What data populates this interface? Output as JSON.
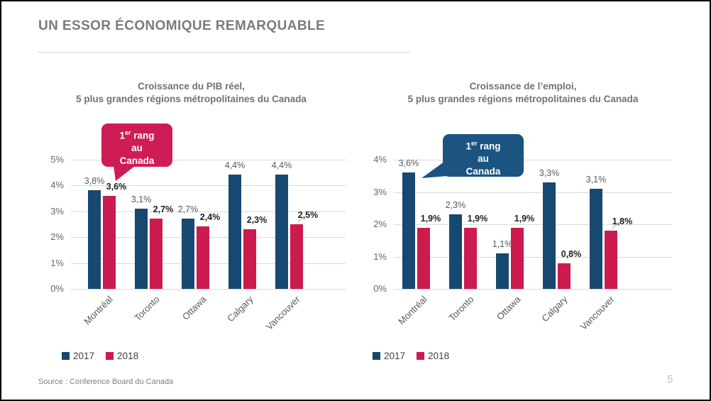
{
  "slide": {
    "title": "UN ESSOR ÉCONOMIQUE REMARQUABLE",
    "source": "Source : Conference Board du Canada",
    "page_number": "5"
  },
  "colors": {
    "navy": "#17486F",
    "crimson": "#CB1B4F",
    "callout_pib": "#CE1D55",
    "callout_emploi": "#1B5480",
    "gridline": "#D9D9D9"
  },
  "chart_data": [
    {
      "type": "bar",
      "title_line1": "Croissance du PIB réel,",
      "title_line2": "5 plus grandes régions métropolitaines du Canada",
      "categories": [
        "Montréal",
        "Toronto",
        "Ottawa",
        "Calgary",
        "Vancouver"
      ],
      "series": [
        {
          "name": "2017",
          "color": "#17486F",
          "values": [
            3.8,
            3.1,
            2.7,
            4.4,
            4.4
          ],
          "labels": [
            "3,8%",
            "3,1%",
            "2,7%",
            "4,4%",
            "4,4%"
          ],
          "bold_labels": false
        },
        {
          "name": "2018",
          "color": "#CB1B4F",
          "values": [
            3.6,
            2.7,
            2.4,
            2.3,
            2.5
          ],
          "labels": [
            "3,6%",
            "2,7%",
            "2,4%",
            "2,3%",
            "2,5%"
          ],
          "bold_labels": true
        }
      ],
      "ylim": [
        0,
        5
      ],
      "yticks": [
        "0%",
        "1%",
        "2%",
        "3%",
        "4%",
        "5%"
      ],
      "grid": true,
      "legend_position": "bottom-left",
      "leader_index": 4,
      "callout": {
        "base": "1",
        "sup": "er",
        "rest": " rang",
        "line2": "au",
        "line3": "Canada",
        "color": "#CE1D55"
      }
    },
    {
      "type": "bar",
      "title_line1": "Croissance de l’emploi,",
      "title_line2": "5 plus grandes régions métropolitaines du Canada",
      "categories": [
        "Montréal",
        "Toronto",
        "Ottawa",
        "Calgary",
        "Vancouver"
      ],
      "series": [
        {
          "name": "2017",
          "color": "#17486F",
          "values": [
            3.6,
            2.3,
            1.1,
            3.3,
            3.1
          ],
          "labels": [
            "3,6%",
            "2,3%",
            "1,1%",
            "3,3%",
            "3,1%"
          ],
          "bold_labels": false
        },
        {
          "name": "2018",
          "color": "#CB1B4F",
          "values": [
            1.9,
            1.9,
            1.9,
            0.8,
            1.8
          ],
          "labels": [
            "1,9%",
            "1,9%",
            "1,9%",
            "0,8%",
            "1,8%"
          ],
          "bold_labels": true
        }
      ],
      "ylim": [
        0,
        4
      ],
      "yticks": [
        "0%",
        "1%",
        "2%",
        "3%",
        "4%"
      ],
      "grid": true,
      "legend_position": "bottom-left",
      "leader_index": 4,
      "callout": {
        "base": "1",
        "sup": "er",
        "rest": " rang",
        "line2": "au",
        "line3": "Canada",
        "color": "#1B5480"
      }
    }
  ],
  "legend": {
    "items": [
      {
        "label": "2017",
        "color": "#17486F"
      },
      {
        "label": "2018",
        "color": "#CB1B4F"
      }
    ]
  }
}
